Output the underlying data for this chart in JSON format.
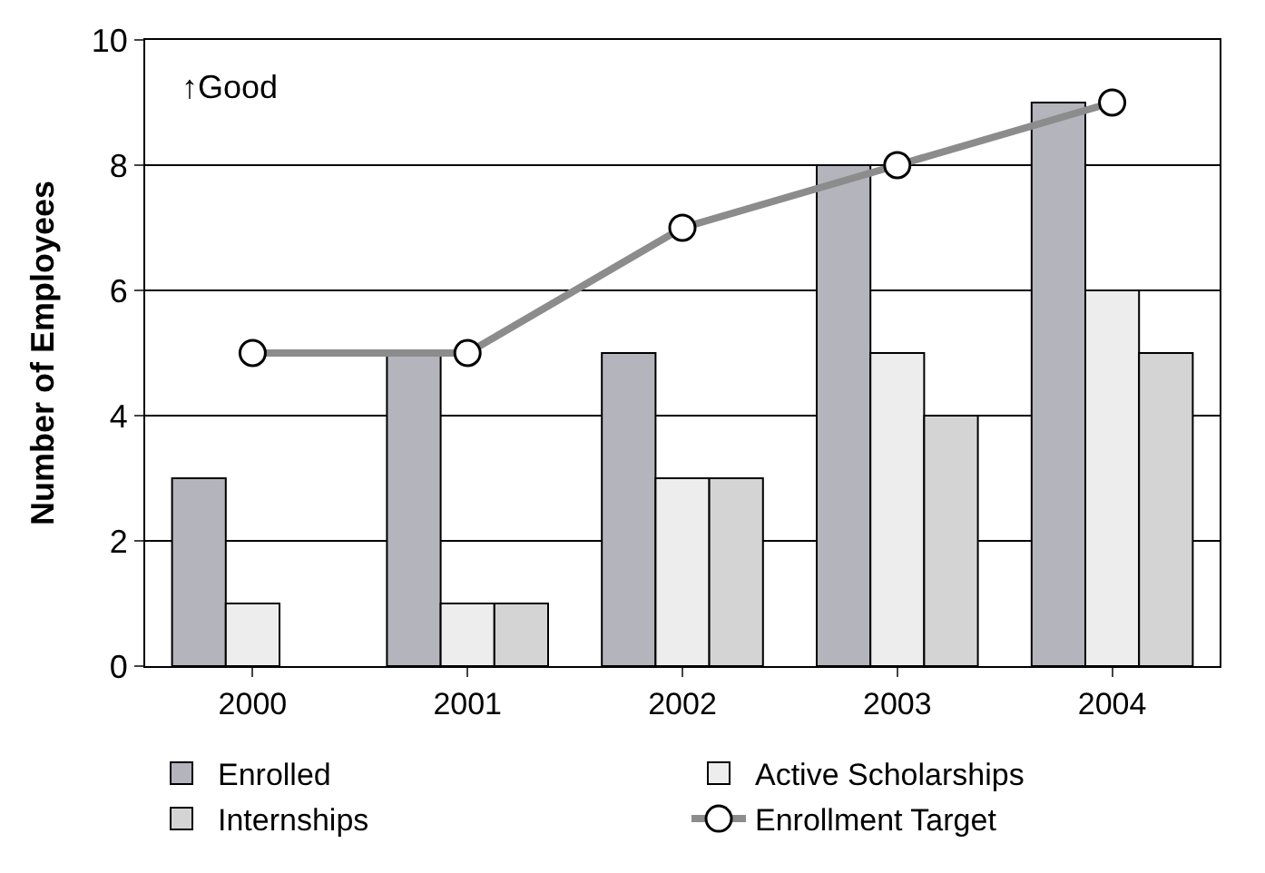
{
  "chart_data": {
    "type": "bar",
    "ylabel": "Number of Employees",
    "categories": [
      "2000",
      "2001",
      "2002",
      "2003",
      "2004"
    ],
    "series": [
      {
        "name": "Enrolled",
        "color": "#b4b4bc",
        "values": [
          3,
          5,
          5,
          8,
          9
        ]
      },
      {
        "name": "Active Scholarships",
        "color": "#ededed",
        "values": [
          1,
          1,
          3,
          5,
          6
        ]
      },
      {
        "name": "Internships",
        "color": "#d4d4d4",
        "values": [
          null,
          1,
          3,
          4,
          5
        ]
      },
      {
        "name": "Enrollment Target",
        "type": "line",
        "color": "#8c8c8c",
        "values": [
          5,
          5,
          7,
          8,
          9
        ]
      }
    ],
    "ylim": [
      0,
      10
    ],
    "yticks": [
      0,
      2,
      4,
      6,
      8,
      10
    ],
    "grid": "y",
    "legend": "bottom",
    "marker": "circle",
    "annotations": [
      "↑Good"
    ]
  }
}
